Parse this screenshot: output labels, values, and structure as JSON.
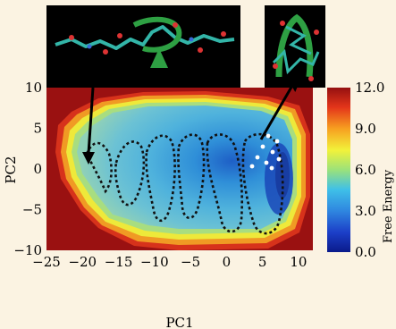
{
  "chart_data": {
    "type": "heatmap",
    "xlabel": "PC1",
    "ylabel": "PC2",
    "xlim": [
      -25,
      12
    ],
    "ylim": [
      -10,
      10
    ],
    "xticks": [
      "−25",
      "−20",
      "−15",
      "−10",
      "−5",
      "0",
      "5",
      "10"
    ],
    "xtick_values": [
      -25,
      -20,
      -15,
      -10,
      -5,
      0,
      5,
      10
    ],
    "yticks": [
      "10",
      "5",
      "0",
      "−5",
      "−10"
    ],
    "ytick_values": [
      10,
      5,
      0,
      -5,
      -10
    ],
    "colorbar": {
      "label": "Free Energy",
      "ticks": [
        "12.0",
        "9.0",
        "6.0",
        "3.0",
        "0.0"
      ],
      "tick_values": [
        12,
        9,
        6,
        3,
        0
      ],
      "range": [
        0,
        12
      ],
      "colormap": "jet"
    },
    "minimum_region_x": [
      6,
      10
    ],
    "minimum_region_y": [
      -5,
      3
    ],
    "annotations": [
      {
        "type": "arrow",
        "from": "unfolded-structure-image",
        "to_x": -20,
        "to_y": 3
      },
      {
        "type": "arrow",
        "from": "folded-cluster",
        "to_x": 11,
        "to_y": 11
      }
    ],
    "insets": [
      "unfolded-peptide-structure",
      "folded-hairpin-structure"
    ]
  },
  "colors": {
    "background": "#fbf3e2",
    "inset_background": "#000000",
    "plot_outside": "#9a1111"
  }
}
